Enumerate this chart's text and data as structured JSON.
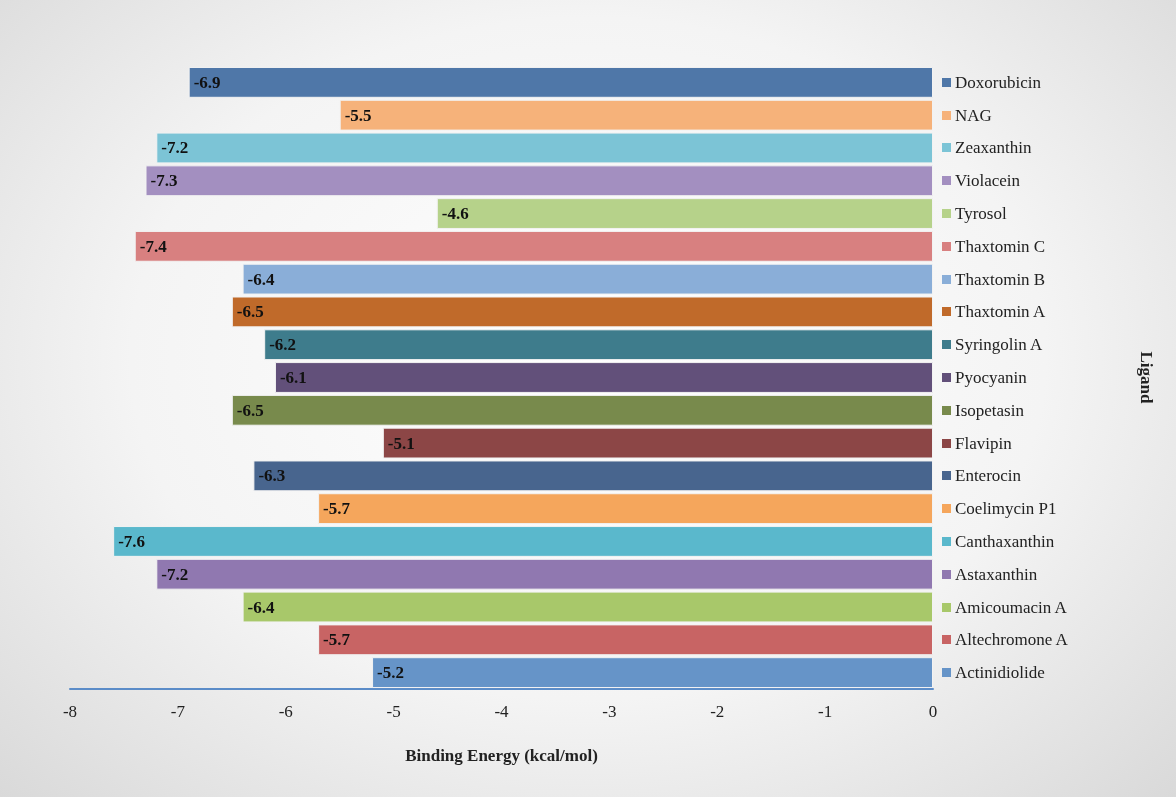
{
  "chart_data": {
    "type": "bar",
    "orientation": "horizontal",
    "xlabel": "Binding Energy (kcal/mol)",
    "ylabel": "Ligand",
    "categories": [
      "Doxorubicin",
      "NAG",
      "Zeaxanthin",
      "Violacein",
      "Tyrosol",
      "Thaxtomin C",
      "Thaxtomin B",
      "Thaxtomin A",
      "Syringolin A",
      "Pyocyanin",
      "Isopetasin",
      "Flavipin",
      "Enterocin",
      "Coelimycin P1",
      "Canthaxanthin",
      "Astaxanthin",
      "Amicoumacin A",
      "Altechromone A",
      "Actinidiolide"
    ],
    "values": [
      -6.9,
      -5.5,
      -7.2,
      -7.3,
      -4.6,
      -7.4,
      -6.4,
      -6.5,
      -6.2,
      -6.1,
      -6.5,
      -5.1,
      -6.3,
      -5.7,
      -7.6,
      -7.2,
      -6.4,
      -5.7,
      -5.2
    ],
    "colors": [
      "#4f77a8",
      "#f6b27a",
      "#7cc4d6",
      "#a38fc0",
      "#b6d28a",
      "#d88080",
      "#8aaed8",
      "#c06a2a",
      "#3e7c8c",
      "#62507a",
      "#788a4c",
      "#8c4646",
      "#48658e",
      "#f5a65c",
      "#5ab8cc",
      "#9078b0",
      "#a8c86a",
      "#c86464",
      "#6694c8"
    ],
    "xlim": [
      -8,
      0
    ],
    "xticks": [
      -8,
      -7,
      -6,
      -5,
      -4,
      -3,
      -2,
      -1,
      0
    ],
    "data_labels": true,
    "grid": false
  }
}
